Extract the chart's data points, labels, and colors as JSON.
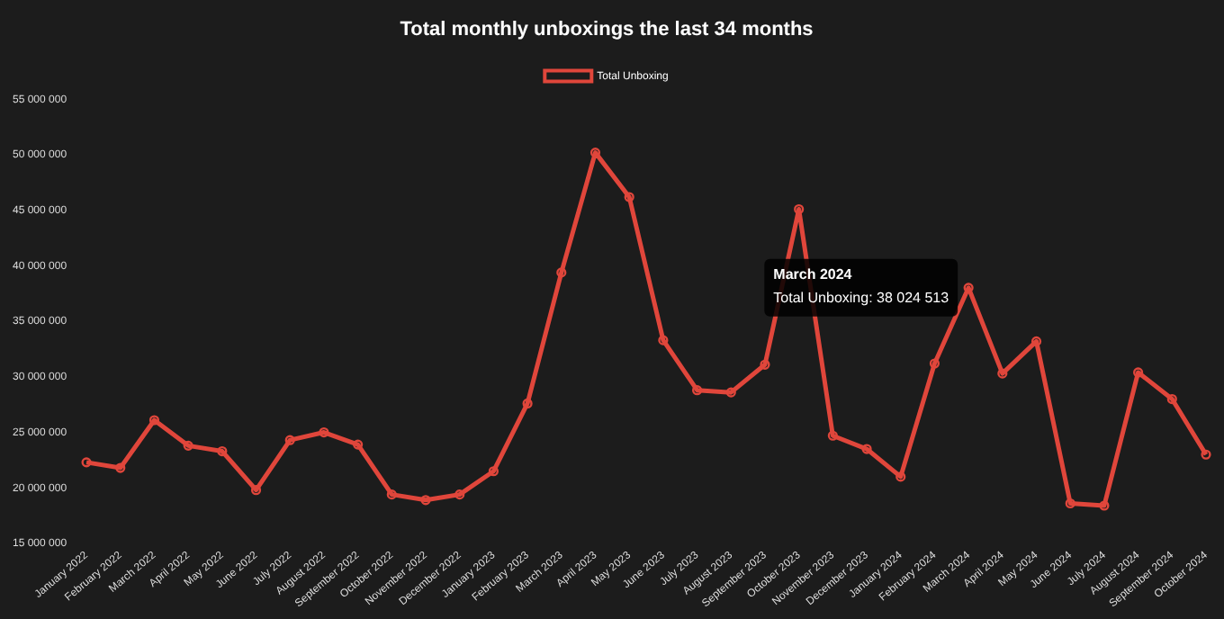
{
  "chart_data": {
    "type": "line",
    "title": "Total monthly unboxings the last 34 months",
    "categories": [
      "January 2022",
      "February 2022",
      "March 2022",
      "April 2022",
      "May 2022",
      "June 2022",
      "July 2022",
      "August 2022",
      "September 2022",
      "October 2022",
      "November 2022",
      "December 2022",
      "January 2023",
      "February 2023",
      "March 2023",
      "April 2023",
      "May 2023",
      "June 2023",
      "July 2023",
      "August 2023",
      "September 2023",
      "October 2023",
      "November 2023",
      "December 2023",
      "January 2024",
      "February 2024",
      "March 2024",
      "April 2024",
      "May 2024",
      "June 2024",
      "July 2024",
      "August 2024",
      "September 2024",
      "October 2024"
    ],
    "series": [
      {
        "name": "Total Unboxing",
        "color": "#e0463b",
        "values": [
          22300000,
          21800000,
          26100000,
          23800000,
          23300000,
          19800000,
          24300000,
          25000000,
          23900000,
          19400000,
          18900000,
          19400000,
          21500000,
          27600000,
          39400000,
          50200000,
          46200000,
          33300000,
          28800000,
          28600000,
          31100000,
          45100000,
          24700000,
          23500000,
          21000000,
          31200000,
          38024513,
          30300000,
          33200000,
          18600000,
          18400000,
          30400000,
          28000000,
          23000000
        ]
      }
    ],
    "ylim": [
      15000000,
      55000000
    ],
    "yticks": [
      {
        "value": 15000000,
        "label": "15 000 000"
      },
      {
        "value": 20000000,
        "label": "20 000 000"
      },
      {
        "value": 25000000,
        "label": "25 000 000"
      },
      {
        "value": 30000000,
        "label": "30 000 000"
      },
      {
        "value": 35000000,
        "label": "35 000 000"
      },
      {
        "value": 40000000,
        "label": "40 000 000"
      },
      {
        "value": 45000000,
        "label": "45 000 000"
      },
      {
        "value": 50000000,
        "label": "50 000 000"
      },
      {
        "value": 55000000,
        "label": "55 000 000"
      }
    ],
    "annotations": [
      {
        "text": "March 2024\nTotal Unboxing: 38 024 513",
        "x": "March 2024",
        "y": 38024513
      }
    ],
    "grid": false,
    "legend": "top",
    "marker": "circle",
    "line_style": "solid"
  }
}
